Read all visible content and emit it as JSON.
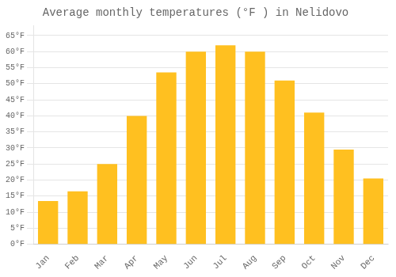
{
  "chart_data": {
    "type": "bar",
    "title": "Average monthly temperatures (°F ) in Nelidovo",
    "categories": [
      "Jan",
      "Feb",
      "Mar",
      "Apr",
      "May",
      "Jun",
      "Jul",
      "Aug",
      "Sep",
      "Oct",
      "Nov",
      "Dec"
    ],
    "values": [
      13.5,
      16.5,
      25.0,
      40.0,
      53.5,
      60.0,
      62.0,
      60.0,
      51.0,
      41.0,
      29.5,
      20.5
    ],
    "color": "#FFC020",
    "ylim": [
      0,
      68
    ],
    "yticks": [
      {
        "value": 0,
        "label": "0°F"
      },
      {
        "value": 5,
        "label": "5°F"
      },
      {
        "value": 10,
        "label": "10°F"
      },
      {
        "value": 15,
        "label": "15°F"
      },
      {
        "value": 20,
        "label": "20°F"
      },
      {
        "value": 25,
        "label": "25°F"
      },
      {
        "value": 30,
        "label": "30°F"
      },
      {
        "value": 35,
        "label": "35°F"
      },
      {
        "value": 40,
        "label": "40°F"
      },
      {
        "value": 45,
        "label": "45°F"
      },
      {
        "value": 50,
        "label": "50°F"
      },
      {
        "value": 55,
        "label": "55°F"
      },
      {
        "value": 60,
        "label": "60°F"
      },
      {
        "value": 65,
        "label": "65°F"
      }
    ],
    "grid": true
  }
}
